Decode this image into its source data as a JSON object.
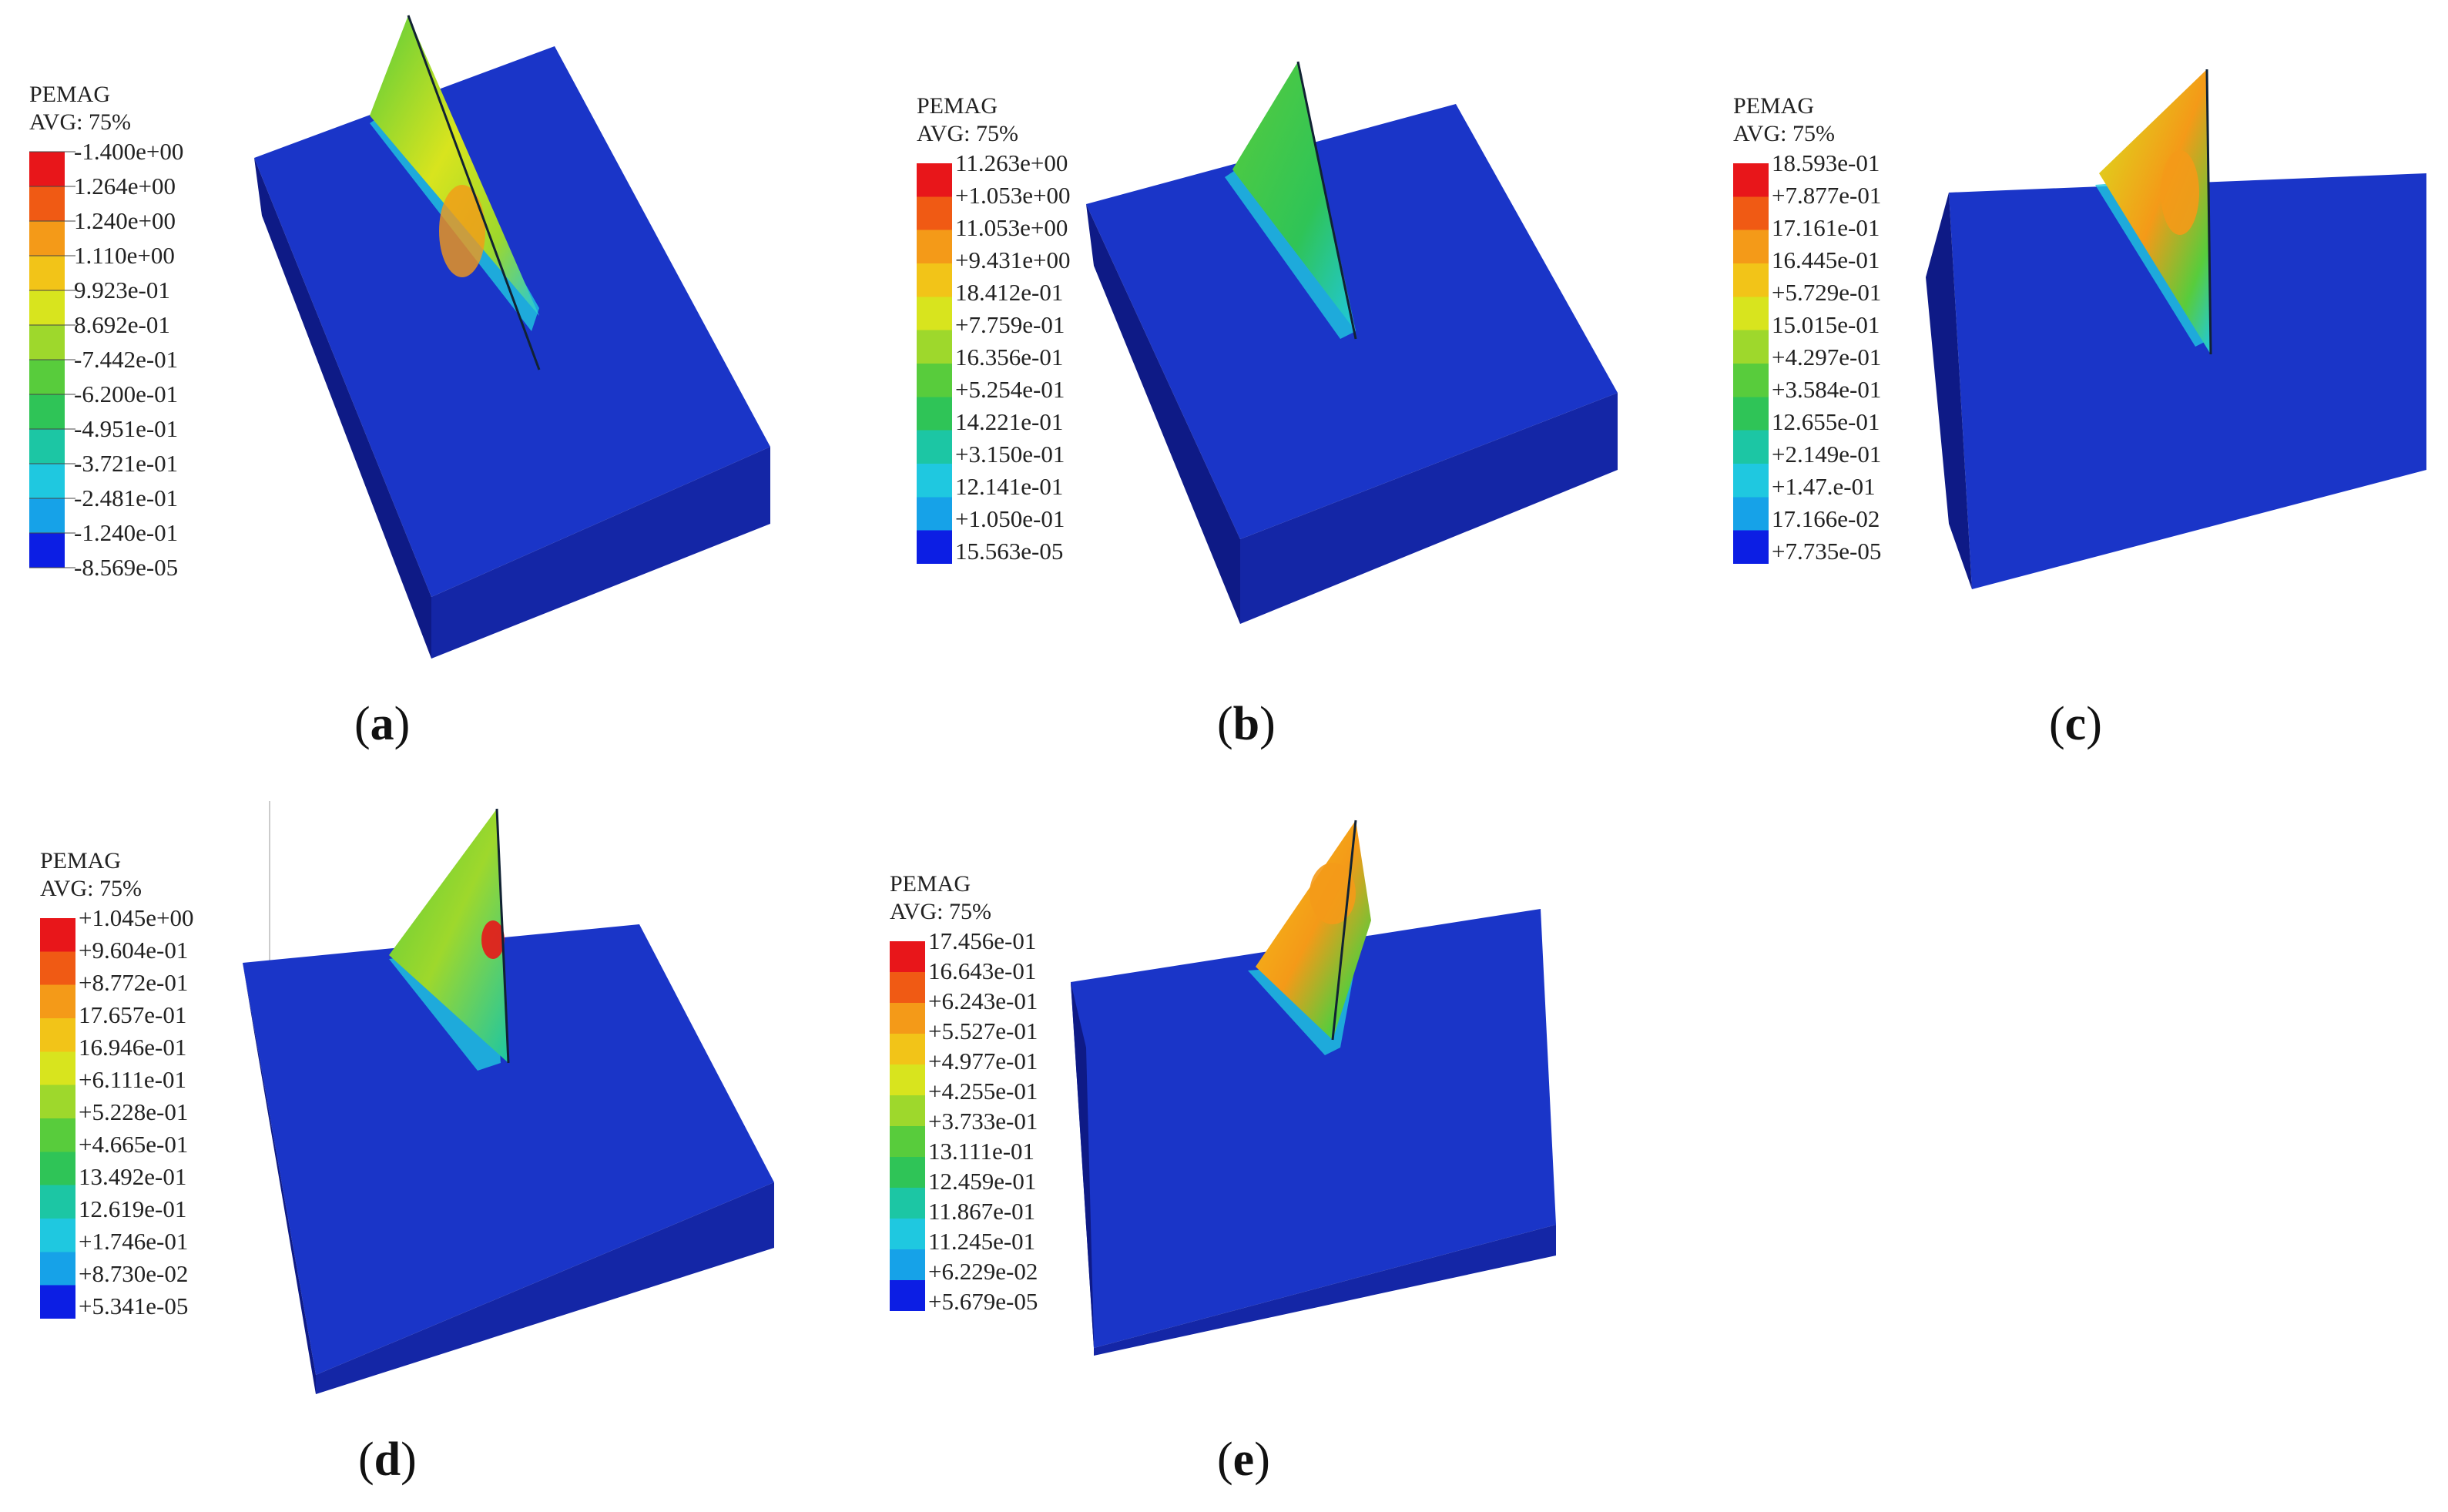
{
  "panels": [
    {
      "id": "a",
      "caption_letter": "a",
      "legend": {
        "title": "PEMAG",
        "subtitle": "AVG: 75%",
        "labels": [
          "-1.400e+00",
          "1.264e+00",
          "1.240e+00",
          "1.110e+00",
          "9.923e-01",
          "8.692e-01",
          "-7.442e-01",
          "-6.200e-01",
          "-4.951e-01",
          "-3.721e-01",
          "-2.481e-01",
          "-1.240e-01",
          "-8.569e-05"
        ]
      }
    },
    {
      "id": "b",
      "caption_letter": "b",
      "legend": {
        "title": "PEMAG",
        "subtitle": "AVG: 75%",
        "labels": [
          "11.263e+00",
          "+1.053e+00",
          "11.053e+00",
          "+9.431e+00",
          "18.412e-01",
          "+7.759e-01",
          "16.356e-01",
          "+5.254e-01",
          "14.221e-01",
          "+3.150e-01",
          "12.141e-01",
          "+1.050e-01",
          "15.563e-05"
        ]
      }
    },
    {
      "id": "c",
      "caption_letter": "c",
      "legend": {
        "title": "PEMAG",
        "subtitle": "AVG: 75%",
        "labels": [
          "18.593e-01",
          "+7.877e-01",
          "17.161e-01",
          "16.445e-01",
          "+5.729e-01",
          "15.015e-01",
          "+4.297e-01",
          "+3.584e-01",
          "12.655e-01",
          "+2.149e-01",
          "+1.47.e-01",
          "17.166e-02",
          "+7.735e-05"
        ]
      }
    },
    {
      "id": "d",
      "caption_letter": "d",
      "legend": {
        "title": "PEMAG",
        "subtitle": "AVG: 75%",
        "labels": [
          "+1.045e+00",
          "+9.604e-01",
          "+8.772e-01",
          "17.657e-01",
          "16.946e-01",
          "+6.111e-01",
          "+5.228e-01",
          "+4.665e-01",
          "13.492e-01",
          "12.619e-01",
          "+1.746e-01",
          "+8.730e-02",
          "+5.341e-05"
        ]
      }
    },
    {
      "id": "e",
      "caption_letter": "e",
      "legend": {
        "title": "PEMAG",
        "subtitle": "AVG: 75%",
        "labels": [
          "17.456e-01",
          "16.643e-01",
          "+6.243e-01",
          "+5.527e-01",
          "+4.977e-01",
          "+4.255e-01",
          "+3.733e-01",
          "13.111e-01",
          "12.459e-01",
          "11.867e-01",
          "11.245e-01",
          "+6.229e-02",
          "+5.679e-05"
        ]
      }
    }
  ],
  "colors": {
    "scale": [
      "#e8161a",
      "#f05a14",
      "#f49a18",
      "#f2c418",
      "#d8e41e",
      "#9ed82c",
      "#58cc3c",
      "#2fc457",
      "#1cc6a4",
      "#1fc8e0",
      "#16a2e8",
      "#1268e0",
      "#0c1ee4"
    ],
    "block_top": "#1a35c8",
    "block_front": "#1426a6",
    "block_side": "#0e1a86",
    "background": "#ffffff"
  }
}
